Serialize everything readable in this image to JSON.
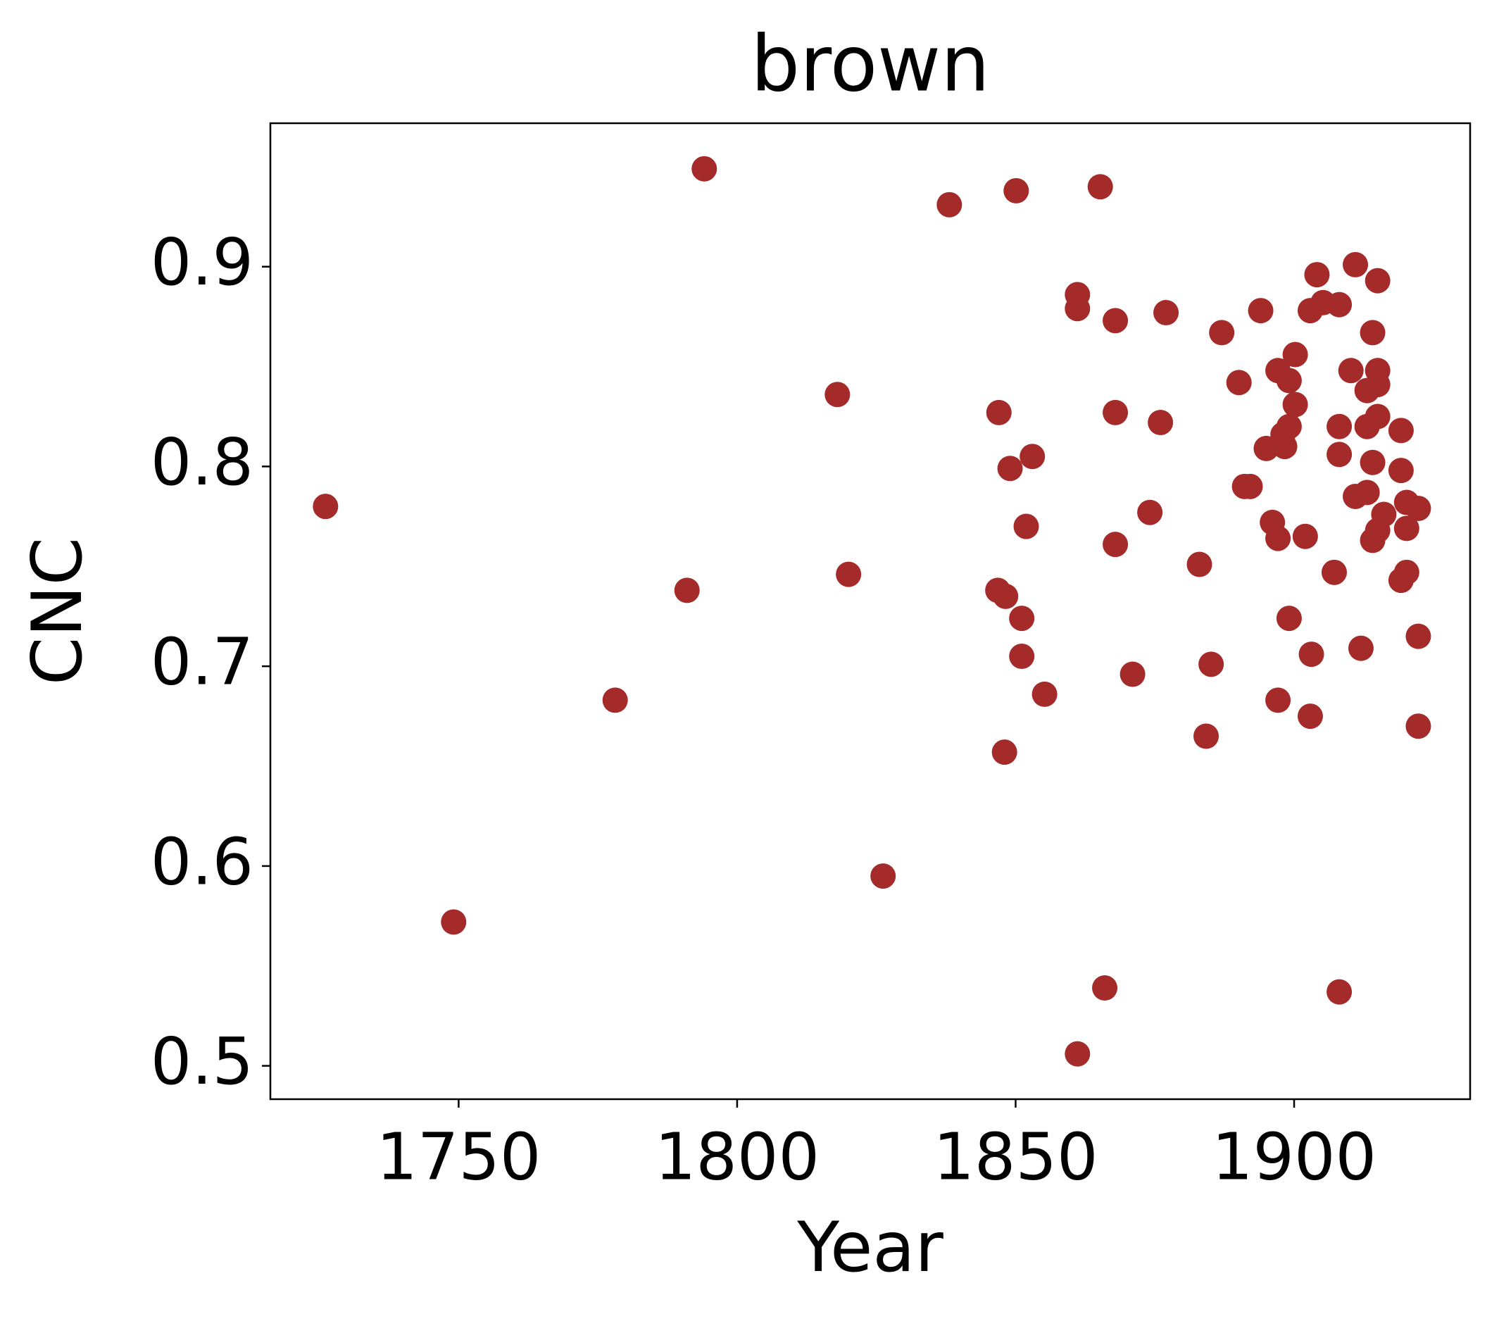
{
  "chart_data": {
    "type": "scatter",
    "title": "brown",
    "xlabel": "Year",
    "ylabel": "CNC",
    "color": "#a52a2a",
    "x": [
      1726.1,
      1749.1,
      1778.1,
      1791.0,
      1794.1,
      1818.0,
      1820.0,
      1826.2,
      1838.1,
      1847.0,
      1846.8,
      1848.2,
      1848.0,
      1849.0,
      1850.1,
      1851.1,
      1851.1,
      1851.9,
      1853.0,
      1855.2,
      1861.1,
      1861.1,
      1861.1,
      1865.2,
      1866.0,
      1867.9,
      1867.9,
      1867.9,
      1871.0,
      1874.1,
      1876.0,
      1877.0,
      1883.0,
      1884.2,
      1885.1,
      1887.0,
      1890.1,
      1891.1,
      1892.1,
      1894.0,
      1895.0,
      1896.1,
      1897.1,
      1897.1,
      1897.1,
      1898.0,
      1898.3,
      1899.1,
      1899.1,
      1899.1,
      1900.2,
      1900.2,
      1902.0,
      1902.9,
      1903.1,
      1902.9,
      1904.1,
      1905.2,
      1907.2,
      1908.1,
      1908.1,
      1908.1,
      1908.1,
      1910.2,
      1911.0,
      1911.0,
      1912.0,
      1913.1,
      1913.1,
      1913.1,
      1914.1,
      1914.1,
      1914.1,
      1915.0,
      1915.0,
      1915.0,
      1915.0,
      1915.0,
      1916.1,
      1919.2,
      1919.2,
      1919.2,
      1920.2,
      1920.2,
      1920.2,
      1922.3,
      1922.3,
      1922.3
    ],
    "values": [
      0.78,
      0.572,
      0.683,
      0.738,
      0.949,
      0.836,
      0.746,
      0.595,
      0.931,
      0.827,
      0.738,
      0.735,
      0.657,
      0.799,
      0.938,
      0.724,
      0.705,
      0.77,
      0.805,
      0.686,
      0.886,
      0.879,
      0.506,
      0.94,
      0.539,
      0.873,
      0.827,
      0.761,
      0.696,
      0.777,
      0.822,
      0.877,
      0.751,
      0.665,
      0.701,
      0.867,
      0.842,
      0.79,
      0.79,
      0.878,
      0.809,
      0.772,
      0.764,
      0.683,
      0.848,
      0.816,
      0.81,
      0.82,
      0.724,
      0.843,
      0.831,
      0.856,
      0.765,
      0.675,
      0.706,
      0.878,
      0.896,
      0.882,
      0.747,
      0.881,
      0.82,
      0.806,
      0.537,
      0.848,
      0.901,
      0.785,
      0.709,
      0.838,
      0.787,
      0.82,
      0.763,
      0.802,
      0.867,
      0.893,
      0.848,
      0.841,
      0.825,
      0.768,
      0.776,
      0.818,
      0.798,
      0.743,
      0.747,
      0.782,
      0.769,
      0.779,
      0.715,
      0.67
    ],
    "xlim": [
      1716.2,
      1931.6
    ],
    "xticks": [
      1750,
      1800,
      1850,
      1900
    ],
    "ylim": [
      0.4833,
      0.9718
    ],
    "yticks": [
      0.5,
      0.6,
      0.7,
      0.8,
      0.9
    ],
    "grid": false
  }
}
